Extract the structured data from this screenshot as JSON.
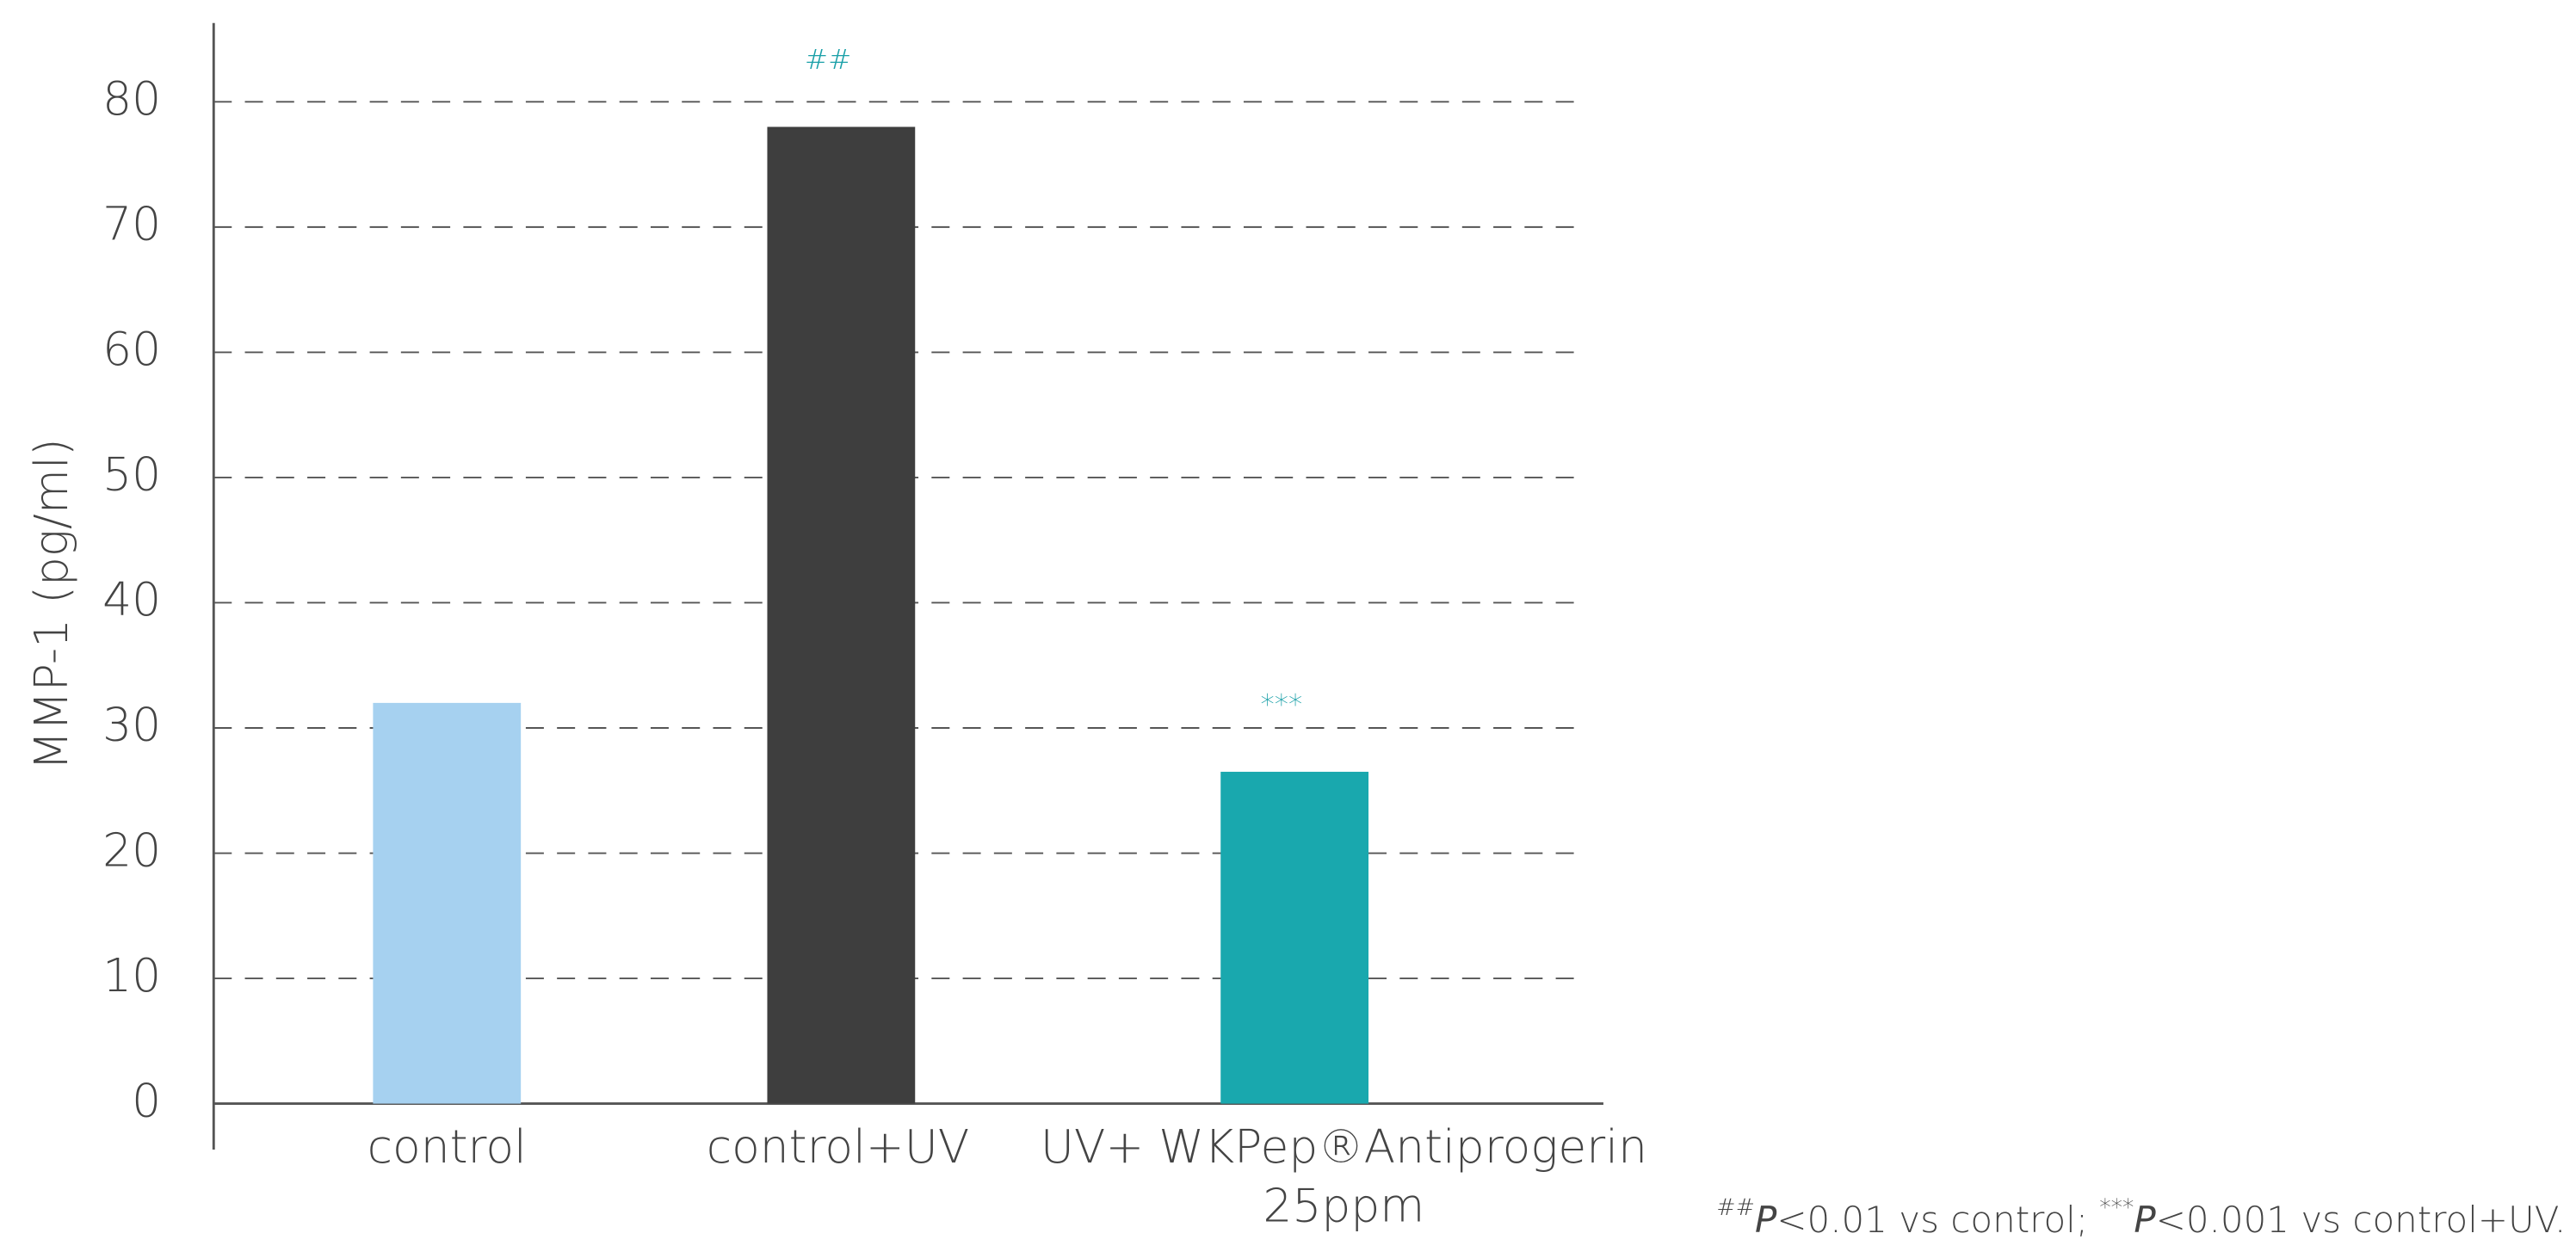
{
  "chart_data": {
    "type": "bar",
    "y_label": "MMP-1 (pg/ml)",
    "categories": [
      "control",
      "control+UV",
      "UV+ WKPep®Antiprogerin\n25ppm"
    ],
    "values": [
      32,
      78,
      26.5
    ],
    "colors": [
      "#a6d1f0",
      "#3e3e3e",
      "#19a8ae"
    ],
    "annotations": [
      null,
      "##",
      "***"
    ],
    "ylim": [
      0,
      86
    ],
    "yticks": [
      0,
      10,
      20,
      30,
      40,
      50,
      60,
      70,
      80
    ],
    "grid": true,
    "footnote": [
      "##",
      "P",
      "<0.01 vs control; ",
      "***",
      "P",
      "<0.001 vs control+UV."
    ]
  }
}
